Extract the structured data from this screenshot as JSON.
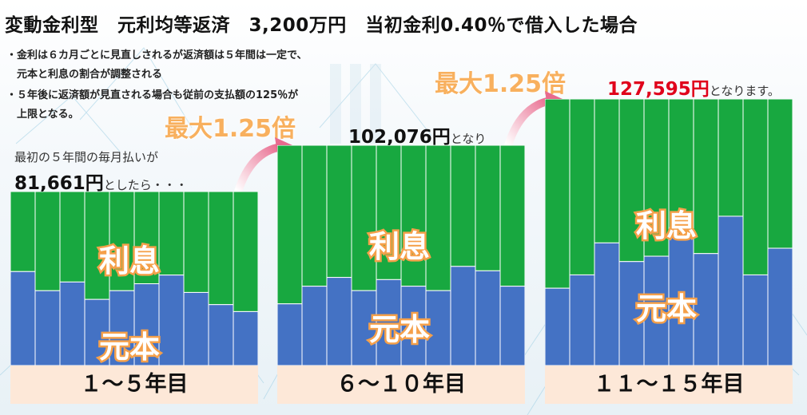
{
  "header": {
    "title": "変動金利型　元利均等返済　3,200万円　当初金利0.40％で借入した場合"
  },
  "notes": [
    "・金利は６カ月ごとに見直しされるが返済額は５年間は一定で、",
    "　元本と利息の割合が調整される",
    "・５年後に返済額が見直される場合も従前の支払額の125％が",
    "　上限となる。"
  ],
  "captions": {
    "first_intro": "最初の５年間の毎月払いが",
    "first_amount": "81,661",
    "first_yen": "円",
    "first_tail": "としたら・・・",
    "second_amount": "102,076",
    "second_yen": "円",
    "second_tail": "となり",
    "third_amount": "127,595",
    "third_yen": "円",
    "third_tail": "となります。"
  },
  "multipliers": [
    "最大1.25倍",
    "最大1.25倍"
  ],
  "colors": {
    "interest": "#18a840",
    "principal": "#4472c4",
    "period_bg": "#fde8d8",
    "accent_red": "#e0001b",
    "multiplier": "#f8b05e"
  },
  "chart_data": [
    {
      "type": "bar",
      "stacked": true,
      "category": "１～５年目",
      "payment": 81661,
      "series_labels": {
        "interest": "利息",
        "principal": "元本"
      },
      "principal_share": [
        0.54,
        0.43,
        0.48,
        0.38,
        0.43,
        0.47,
        0.52,
        0.42,
        0.35,
        0.31
      ]
    },
    {
      "type": "bar",
      "stacked": true,
      "category": "６～１０年目",
      "payment": 102076,
      "series_labels": {
        "interest": "利息",
        "principal": "元本"
      },
      "principal_share": [
        0.28,
        0.36,
        0.4,
        0.34,
        0.39,
        0.36,
        0.34,
        0.45,
        0.43,
        0.36
      ]
    },
    {
      "type": "bar",
      "stacked": true,
      "category": "１１～１５年目",
      "payment": 127595,
      "series_labels": {
        "interest": "利息",
        "principal": "元本"
      },
      "principal_share": [
        0.29,
        0.34,
        0.46,
        0.39,
        0.41,
        0.48,
        0.42,
        0.56,
        0.34,
        0.44
      ]
    }
  ]
}
